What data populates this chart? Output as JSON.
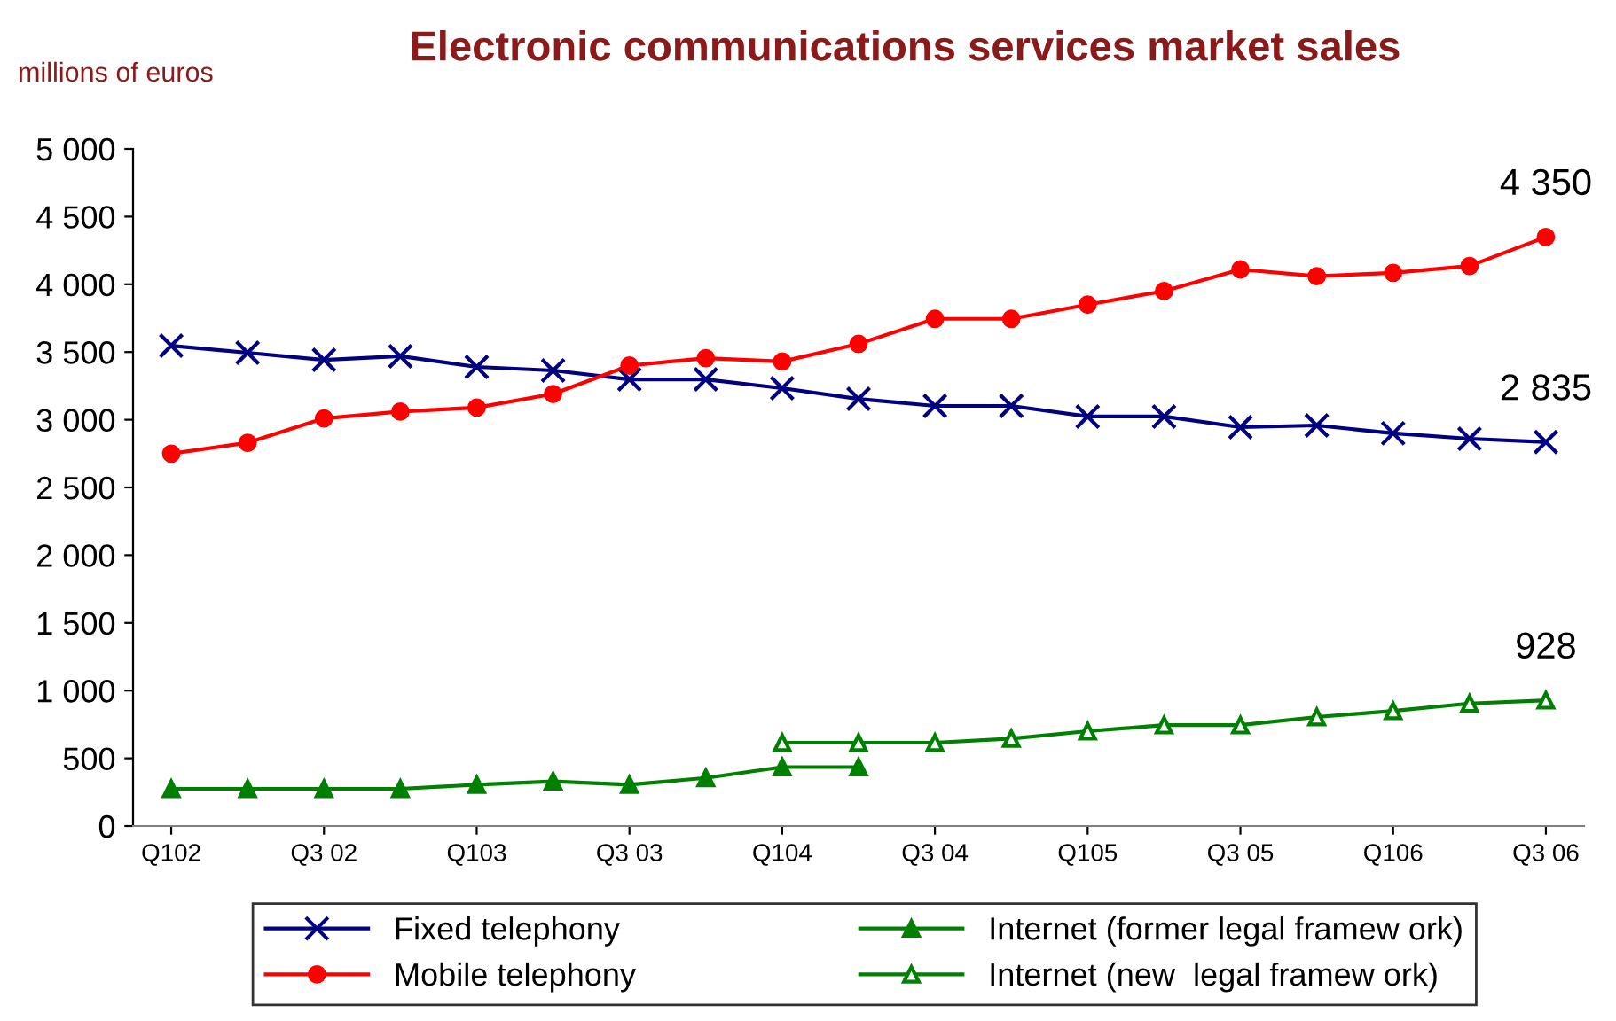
{
  "chart_data": {
    "type": "line",
    "title": "Electronic communications services market sales",
    "ylabel": "millions of euros",
    "categories": [
      "Q102",
      null,
      "Q3 02",
      null,
      "Q103",
      null,
      "Q3 03",
      null,
      "Q104",
      null,
      "Q3 04",
      null,
      "Q105",
      null,
      "Q3 05",
      null,
      "Q106",
      null,
      "Q3 06"
    ],
    "series": [
      {
        "name": "Fixed telephony",
        "color": "#000080",
        "marker": "cross",
        "values": [
          3547,
          3495,
          3442,
          3469,
          3390,
          3364,
          3298,
          3298,
          3233,
          3154,
          3102,
          3102,
          3024,
          3024,
          2945,
          2958,
          2900,
          2860,
          2835
        ],
        "value_labels": [
          null,
          null,
          null,
          null,
          null,
          null,
          null,
          null,
          null,
          null,
          null,
          null,
          null,
          null,
          null,
          null,
          null,
          null,
          "2 835"
        ]
      },
      {
        "name": "Mobile telephony",
        "color": "#ff0000",
        "marker": "circle",
        "values": [
          2750,
          2830,
          3010,
          3060,
          3090,
          3190,
          3400,
          3455,
          3430,
          3560,
          3745,
          3745,
          3850,
          3950,
          4110,
          4060,
          4085,
          4135,
          4350
        ],
        "value_labels": [
          null,
          null,
          null,
          null,
          null,
          null,
          null,
          null,
          null,
          null,
          null,
          null,
          null,
          null,
          null,
          null,
          null,
          null,
          "4 350"
        ]
      },
      {
        "name": "Internet (former legal framew ork)",
        "color": "#008000",
        "marker": "triangle",
        "values": [
          275,
          275,
          275,
          275,
          305,
          330,
          305,
          355,
          435,
          435,
          null,
          null,
          null,
          null,
          null,
          null,
          null,
          null,
          null
        ]
      },
      {
        "name": "Internet (new  legal framew ork)",
        "color": "#008000",
        "marker": "triangle_open",
        "values": [
          null,
          null,
          null,
          null,
          null,
          null,
          null,
          null,
          615,
          615,
          615,
          645,
          700,
          745,
          745,
          805,
          850,
          905,
          928
        ],
        "value_labels": [
          null,
          null,
          null,
          null,
          null,
          null,
          null,
          null,
          null,
          null,
          null,
          null,
          null,
          null,
          null,
          null,
          null,
          null,
          "928"
        ]
      }
    ],
    "ylim": [
      0,
      5000
    ],
    "yticks": [
      0,
      500,
      {
        "value": 1000,
        "label": "1 000"
      },
      {
        "value": 1500,
        "label": "1 500"
      },
      {
        "value": 2000,
        "label": "2 000"
      },
      {
        "value": 2500,
        "label": "2 500"
      },
      {
        "value": 3000,
        "label": "3 000"
      },
      {
        "value": 3500,
        "label": "3 500"
      },
      {
        "value": 4000,
        "label": "4 000"
      },
      {
        "value": 4500,
        "label": "4 500"
      },
      {
        "value": 5000,
        "label": "5 000"
      }
    ],
    "grid": false,
    "legend": "bottom"
  }
}
